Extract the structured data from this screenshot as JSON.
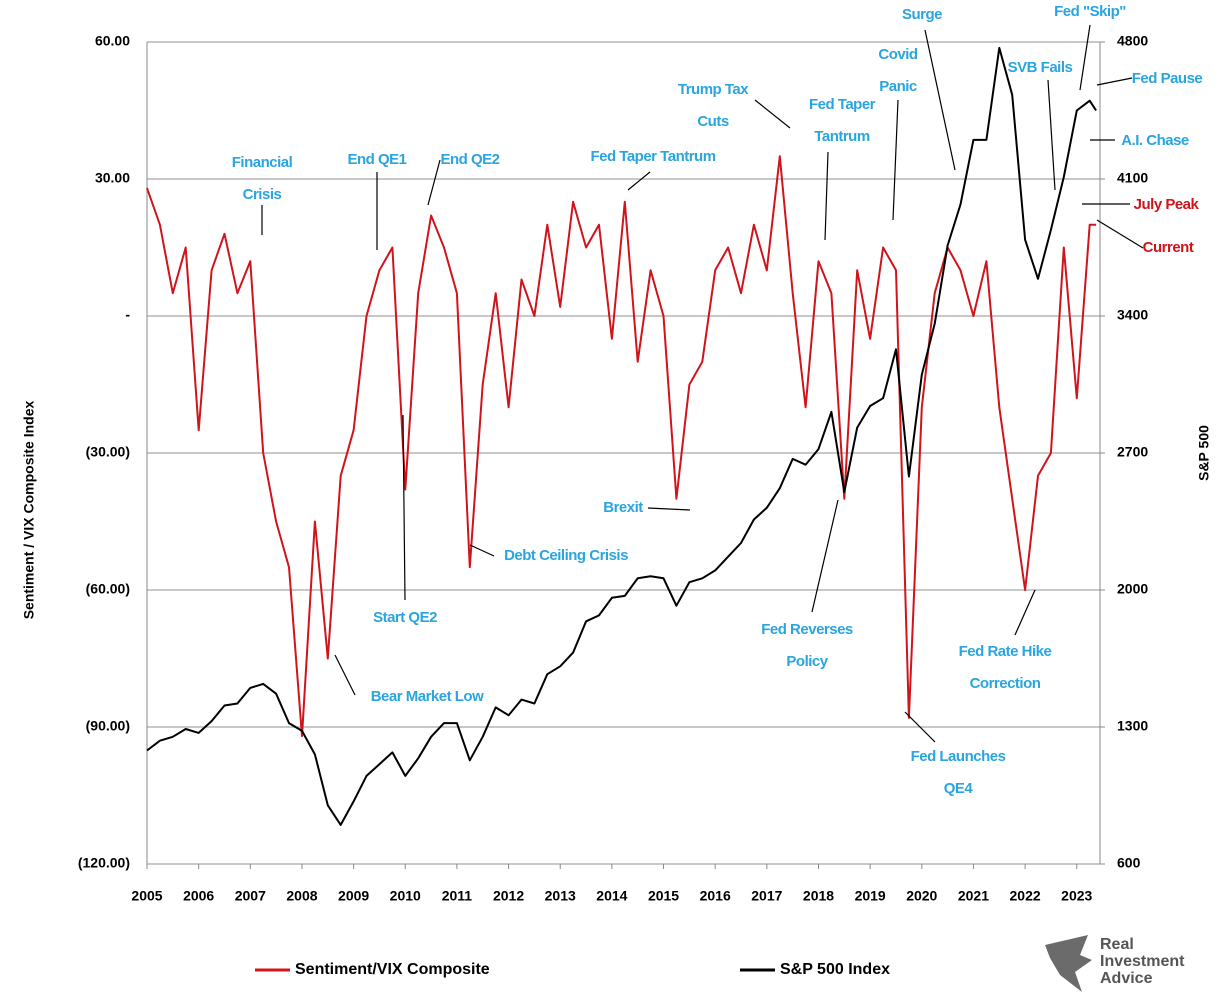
{
  "chart_data": {
    "type": "line",
    "y_axis_label": "Sentiment / VIX Composite Index",
    "y2_axis_label": "S&P 500",
    "xlim": [
      2005,
      2023.45
    ],
    "xticks": [
      2005,
      2006,
      2007,
      2008,
      2009,
      2010,
      2011,
      2012,
      2013,
      2014,
      2015,
      2016,
      2017,
      2018,
      2019,
      2020,
      2021,
      2022,
      2023
    ],
    "ylim": [
      -120,
      60
    ],
    "yticks": [
      {
        "value": 60,
        "label": "60.00"
      },
      {
        "value": 30,
        "label": "30.00"
      },
      {
        "value": 0,
        "label": "-"
      },
      {
        "value": -30,
        "label": "(30.00)"
      },
      {
        "value": -60,
        "label": "(60.00)"
      },
      {
        "value": -90,
        "label": "(90.00)"
      },
      {
        "value": -120,
        "label": "(120.00)"
      }
    ],
    "y2lim": [
      600,
      4800
    ],
    "y2ticks": [
      4800,
      4100,
      3400,
      2700,
      2000,
      1300,
      600
    ],
    "grid": true,
    "legend": "bottom",
    "x": [
      2005,
      2005.25,
      2005.5,
      2005.75,
      2006,
      2006.25,
      2006.5,
      2006.75,
      2007,
      2007.25,
      2007.5,
      2007.75,
      2008,
      2008.25,
      2008.5,
      2008.75,
      2009,
      2009.25,
      2009.5,
      2009.75,
      2010,
      2010.25,
      2010.5,
      2010.75,
      2011,
      2011.25,
      2011.5,
      2011.75,
      2012,
      2012.25,
      2012.5,
      2012.75,
      2013,
      2013.25,
      2013.5,
      2013.75,
      2014,
      2014.25,
      2014.5,
      2014.75,
      2015,
      2015.25,
      2015.5,
      2015.75,
      2016,
      2016.25,
      2016.5,
      2016.75,
      2017,
      2017.25,
      2017.5,
      2017.75,
      2018,
      2018.25,
      2018.5,
      2018.75,
      2019,
      2019.25,
      2019.5,
      2019.75,
      2020,
      2020.25,
      2020.5,
      2020.75,
      2021,
      2021.25,
      2021.5,
      2021.75,
      2022,
      2022.25,
      2022.5,
      2022.75,
      2023,
      2023.25,
      2023.375
    ],
    "series": [
      {
        "name": "Sentiment/VIX Composite",
        "color": "#d0141c",
        "axis": "y",
        "values": [
          28,
          20,
          5,
          15,
          -25,
          10,
          18,
          5,
          12,
          -30,
          -45,
          -55,
          -92,
          -45,
          -75,
          -35,
          -25,
          0,
          10,
          15,
          -38,
          5,
          22,
          15,
          5,
          -55,
          -15,
          5,
          -20,
          8,
          0,
          20,
          2,
          25,
          15,
          20,
          -5,
          25,
          -10,
          10,
          0,
          -40,
          -15,
          -10,
          10,
          15,
          5,
          20,
          10,
          35,
          5,
          -20,
          12,
          5,
          -40,
          10,
          -5,
          15,
          10,
          -88,
          -20,
          5,
          15,
          10,
          0,
          12,
          -20,
          -40,
          -60,
          -35,
          -30,
          15,
          -18,
          20,
          20
        ]
      },
      {
        "name": "S&P 500 Index",
        "color": "#000000",
        "axis": "y2",
        "values": [
          1180,
          1230,
          1250,
          1290,
          1270,
          1330,
          1410,
          1420,
          1500,
          1520,
          1470,
          1320,
          1280,
          1160,
          900,
          800,
          920,
          1050,
          1110,
          1170,
          1050,
          1140,
          1250,
          1320,
          1320,
          1130,
          1250,
          1400,
          1360,
          1440,
          1420,
          1570,
          1610,
          1680,
          1840,
          1870,
          1960,
          1970,
          2060,
          2070,
          2060,
          1920,
          2040,
          2060,
          2100,
          2170,
          2240,
          2360,
          2420,
          2520,
          2670,
          2640,
          2720,
          2910,
          2500,
          2830,
          2940,
          2980,
          3230,
          2580,
          3100,
          3360,
          3760,
          3970,
          4300,
          4300,
          4770,
          4530,
          3790,
          3590,
          3840,
          4110,
          4450,
          4500,
          4450
        ]
      }
    ],
    "annotations": [
      [
        "Financial",
        "Crisis"
      ],
      [
        "End QE1"
      ],
      [
        "End QE2"
      ],
      [
        "Fed Taper Tantrum"
      ],
      [
        "Trump Tax",
        "Cuts"
      ],
      [
        "Fed Taper",
        "Tantrum"
      ],
      [
        "Covid",
        "Panic"
      ],
      [
        "Surge"
      ],
      [
        "Fed \"Skip\""
      ],
      [
        "SVB Fails"
      ],
      [
        "Fed Pause"
      ],
      [
        "A.I. Chase"
      ],
      [
        "July Peak"
      ],
      [
        "Current"
      ],
      [
        "Brexit"
      ],
      [
        "Debt Ceiling Crisis"
      ],
      [
        "Start QE2"
      ],
      [
        "Bear Market Low"
      ],
      [
        "Fed Reverses",
        "Policy"
      ],
      [
        "Fed Rate Hike",
        "Correction"
      ],
      [
        "Fed Launches",
        "QE4"
      ]
    ],
    "logo": [
      "Real",
      "Investment",
      "Advice"
    ]
  }
}
